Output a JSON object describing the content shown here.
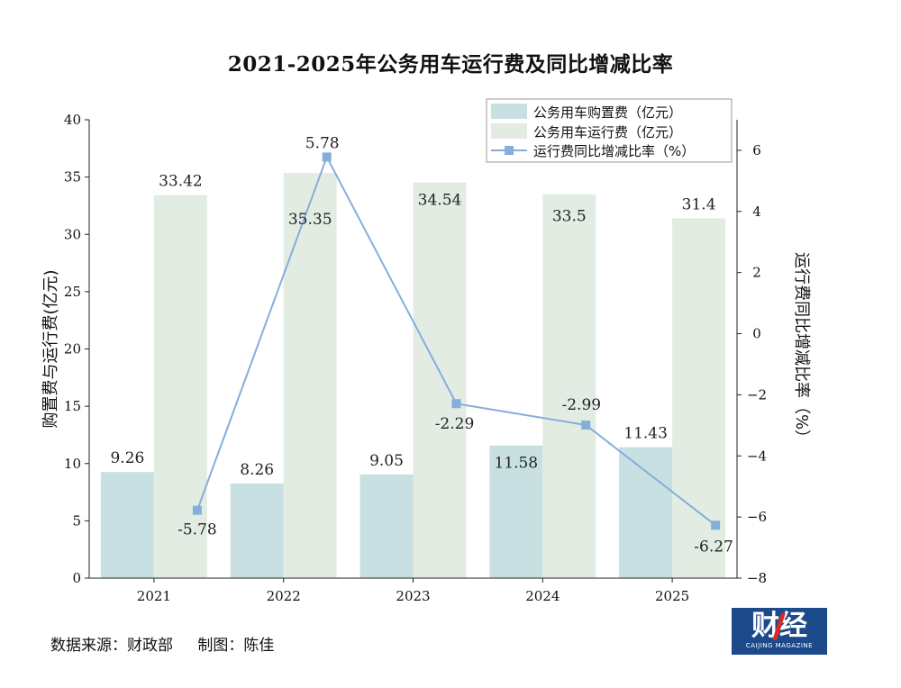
{
  "chart_data": {
    "type": "bar",
    "title": "2021-2025年公务用车运行费及同比增减比率",
    "categories": [
      "2021",
      "2022",
      "2023",
      "2024",
      "2025"
    ],
    "series": [
      {
        "name": "公务用车购置费（亿元）",
        "kind": "bar",
        "axis": "left",
        "color": "#c9e0e2",
        "values": [
          9.26,
          8.26,
          9.05,
          11.58,
          11.43
        ],
        "labels": [
          "9.26",
          "8.26",
          "9.05",
          "11.58",
          "11.43"
        ]
      },
      {
        "name": "公务用车运行费（亿元）",
        "kind": "bar",
        "axis": "left",
        "color": "#e2ece2",
        "values": [
          33.42,
          35.35,
          34.54,
          33.5,
          31.4
        ],
        "labels": [
          "33.42",
          "35.35",
          "34.54",
          "33.5",
          "31.4"
        ]
      },
      {
        "name": "运行费同比增减比率（%）",
        "kind": "line",
        "axis": "right",
        "color": "#85aedb",
        "values": [
          -5.78,
          5.78,
          -2.29,
          -2.99,
          -6.27
        ],
        "labels": [
          "-5.78",
          "5.78",
          "-2.29",
          "-2.99",
          "-6.27"
        ]
      }
    ],
    "ylabel": "购置费与运行费(亿元)",
    "ylim": [
      0,
      40
    ],
    "yticks": [
      0,
      5,
      10,
      15,
      20,
      25,
      30,
      35,
      40
    ],
    "y2label": "运行费同比增减比率（%）",
    "y2lim": [
      -8,
      7
    ],
    "y2ticks": [
      -8,
      -6,
      -4,
      -2,
      0,
      2,
      4,
      6
    ],
    "grid": false,
    "legend_position": "top-right"
  },
  "footer": {
    "source": "数据来源：财政部",
    "author": "制图：陈佳"
  },
  "logo": {
    "main": "财经",
    "sub": "CAIJING MAGAZINE"
  }
}
